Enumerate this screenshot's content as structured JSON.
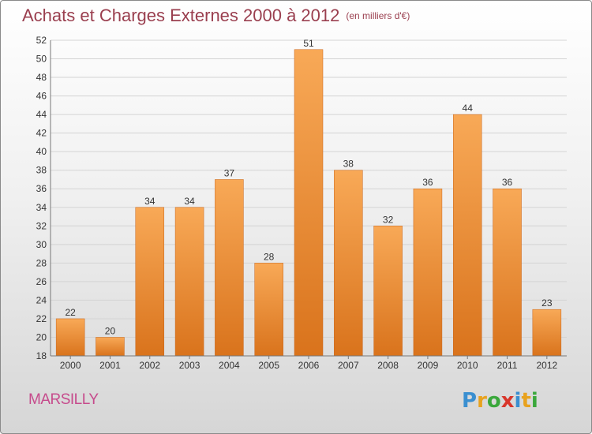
{
  "title": {
    "main": "Achats et Charges Externes 2000 à 2012",
    "sub": "(en milliers d'€)"
  },
  "commune": "MARSILLY",
  "logo": {
    "name": "Proxiti",
    "letters": [
      "P",
      "r",
      "o",
      "x",
      "i",
      "t",
      "i"
    ]
  },
  "colors": {
    "title": "#9a3f4f",
    "commune": "#c64b8c",
    "bar_top": "#f8a957",
    "bar_bottom": "#d9731c"
  },
  "chart_data": {
    "type": "bar",
    "title": "Achats et Charges Externes 2000 à 2012",
    "subtitle": "(en milliers d'€)",
    "categories": [
      "2000",
      "2001",
      "2002",
      "2003",
      "2004",
      "2005",
      "2006",
      "2007",
      "2008",
      "2009",
      "2010",
      "2011",
      "2012"
    ],
    "values": [
      22,
      20,
      34,
      34,
      37,
      28,
      51,
      38,
      32,
      36,
      44,
      36,
      23
    ],
    "data_labels": [
      "22",
      "20",
      "34",
      "34",
      "37",
      "28",
      "51",
      "38",
      "32",
      "36",
      "44",
      "36",
      "23"
    ],
    "ylim": [
      18,
      52
    ],
    "yticks": [
      18,
      20,
      22,
      24,
      26,
      28,
      30,
      32,
      34,
      36,
      38,
      40,
      42,
      44,
      46,
      48,
      50,
      52
    ],
    "xlabel": "",
    "ylabel": "",
    "grid": true
  }
}
